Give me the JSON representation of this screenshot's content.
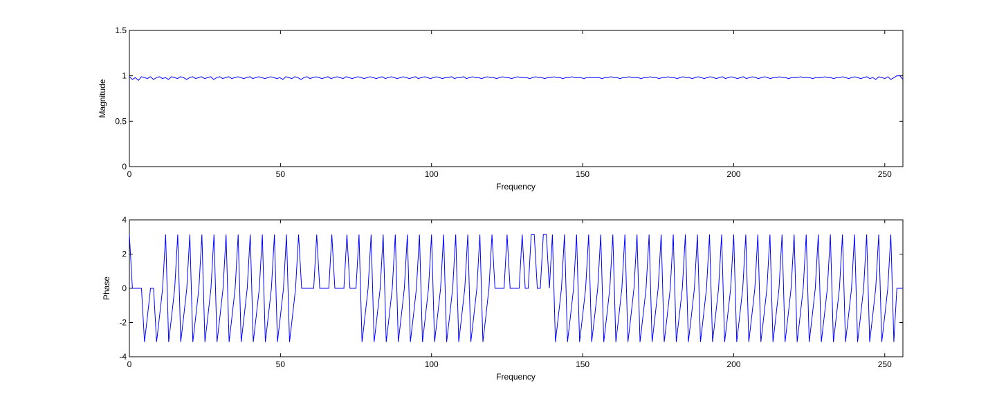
{
  "chart_data": [
    {
      "type": "line",
      "xlabel": "Frequency",
      "ylabel": "Magnitude",
      "xlim": [
        0,
        256
      ],
      "ylim": [
        0,
        1.5
      ],
      "xticks": [
        "0",
        "50",
        "100",
        "150",
        "200",
        "250"
      ],
      "yticks": [
        "0",
        "0.5",
        "1",
        "1.5"
      ],
      "grid": false,
      "line_color": "#0000ff",
      "series": [
        {
          "values_estimated": [
            0.99,
            0.96,
            0.98,
            0.95,
            0.99,
            0.98,
            0.97,
            0.99,
            0.96,
            0.98,
            0.99,
            0.97,
            0.98,
            0.96,
            0.99,
            0.98,
            0.97,
            0.99,
            0.98,
            0.96,
            0.98,
            0.99,
            0.97,
            0.98,
            0.99,
            0.97,
            0.98,
            0.99,
            0.96,
            0.98,
            0.99,
            0.97,
            0.98,
            0.99,
            0.97,
            0.98,
            0.99,
            0.98,
            0.97,
            0.98,
            0.99,
            0.97,
            0.98,
            0.99,
            0.98,
            0.97,
            0.98,
            0.99,
            0.98,
            0.97,
            0.98,
            0.96,
            0.99,
            0.98,
            0.97,
            0.99,
            0.98,
            0.96,
            0.98,
            0.99,
            0.97,
            0.98,
            0.99,
            0.98,
            0.97,
            0.98,
            0.99,
            0.97,
            0.98,
            0.99,
            0.98,
            0.97,
            0.99,
            0.98,
            0.97,
            0.98,
            0.99,
            0.98,
            0.97,
            0.98,
            0.99,
            0.98,
            0.97,
            0.98,
            0.99,
            0.97,
            0.98,
            0.99,
            0.98,
            0.97,
            0.98,
            0.99,
            0.98,
            0.97,
            0.98,
            0.99,
            0.97,
            0.98,
            0.99,
            0.98,
            0.97,
            0.98,
            0.99,
            0.98,
            0.97,
            0.98,
            0.98,
            0.99,
            0.97,
            0.98,
            0.98,
            0.99,
            0.97,
            0.98,
            0.99,
            0.98,
            0.98,
            0.97,
            0.98,
            0.99,
            0.98,
            0.98,
            0.97,
            0.98,
            0.99,
            0.98,
            0.98,
            0.97,
            0.98,
            0.99,
            0.98,
            0.98,
            0.98,
            0.97,
            0.98,
            0.99,
            0.98,
            0.98,
            0.97,
            0.98,
            0.98,
            0.99,
            0.98,
            0.98,
            0.97,
            0.98,
            0.98,
            0.99,
            0.98,
            0.98,
            0.98,
            0.97,
            0.98,
            0.98,
            0.98,
            0.98,
            0.98,
            0.97,
            0.98,
            0.98,
            0.99,
            0.98,
            0.98,
            0.97,
            0.98,
            0.98,
            0.99,
            0.98,
            0.98,
            0.98,
            0.97,
            0.98,
            0.98,
            0.99,
            0.98,
            0.98,
            0.97,
            0.98,
            0.98,
            0.99,
            0.98,
            0.98,
            0.97,
            0.98,
            0.99,
            0.98,
            0.98,
            0.97,
            0.98,
            0.99,
            0.98,
            0.97,
            0.98,
            0.99,
            0.98,
            0.97,
            0.98,
            0.99,
            0.97,
            0.98,
            0.99,
            0.98,
            0.97,
            0.98,
            0.99,
            0.97,
            0.98,
            0.99,
            0.98,
            0.97,
            0.98,
            0.99,
            0.98,
            0.97,
            0.98,
            0.98,
            0.99,
            0.98,
            0.98,
            0.97,
            0.98,
            0.98,
            0.98,
            0.99,
            0.98,
            0.98,
            0.98,
            0.97,
            0.98,
            0.98,
            0.98,
            0.99,
            0.98,
            0.98,
            0.97,
            0.98,
            0.98,
            0.99,
            0.98,
            0.97,
            0.98,
            0.99,
            0.98,
            0.97,
            0.98,
            0.99,
            0.97,
            0.98,
            0.96,
            0.99,
            0.98,
            0.97,
            0.99,
            0.96,
            0.98,
            1.0,
            1.0,
            0.96
          ]
        }
      ]
    },
    {
      "type": "line",
      "xlabel": "Frequency",
      "ylabel": "Phase",
      "xlim": [
        0,
        256
      ],
      "ylim": [
        -4,
        4
      ],
      "xticks": [
        "0",
        "50",
        "100",
        "150",
        "200",
        "250"
      ],
      "yticks": [
        "-4",
        "-2",
        "0",
        "2",
        "4"
      ],
      "grid": false,
      "line_color": "#0000ff",
      "series": [
        {
          "description_points_x": [
            0,
            1,
            2,
            3,
            4,
            5,
            6,
            7,
            8,
            9,
            10,
            11,
            12,
            13,
            14,
            15,
            16,
            17,
            18,
            19,
            20,
            21,
            22,
            23,
            24,
            25,
            26,
            27,
            28,
            29,
            30,
            31,
            32,
            33,
            34,
            35,
            36,
            37,
            38,
            39,
            40,
            41,
            42,
            43,
            44,
            45,
            46,
            47,
            48,
            49,
            50,
            51,
            52,
            53,
            54,
            55,
            56,
            57,
            58,
            59,
            60,
            61,
            62,
            63,
            64,
            65,
            66,
            67,
            68,
            69,
            70,
            71,
            72,
            73,
            74,
            75,
            76,
            77,
            78,
            79,
            80,
            81,
            82,
            83,
            84,
            85,
            86,
            87,
            88,
            89,
            90,
            91,
            92,
            93,
            94,
            95,
            96,
            97,
            98,
            99,
            100,
            101,
            102,
            103,
            104,
            105,
            106,
            107,
            108,
            109,
            110,
            111,
            112,
            113,
            114,
            115,
            116,
            117,
            118,
            119,
            120,
            121,
            122,
            123,
            124,
            125,
            126,
            127,
            128,
            129,
            130,
            131,
            132,
            133,
            134,
            135,
            136,
            137,
            138,
            139,
            140,
            141,
            142,
            143,
            144,
            145,
            146,
            147,
            148,
            149,
            150,
            151,
            152,
            153,
            154,
            155,
            156,
            157,
            158,
            159,
            160,
            161,
            162,
            163,
            164,
            165,
            166,
            167,
            168,
            169,
            170,
            171,
            172,
            173,
            174,
            175,
            176,
            177,
            178,
            179,
            180,
            181,
            182,
            183,
            184,
            185,
            186,
            187,
            188,
            189,
            190,
            191,
            192,
            193,
            194,
            195,
            196,
            197,
            198,
            199,
            200,
            201,
            202,
            203,
            204,
            205,
            206,
            207,
            208,
            209,
            210,
            211,
            212,
            213,
            214,
            215,
            216,
            217,
            218,
            219,
            220,
            221,
            222,
            223,
            224,
            225,
            226,
            227,
            228,
            229,
            230,
            231,
            232,
            233,
            234,
            235,
            236,
            237,
            238,
            239,
            240,
            241,
            242,
            243,
            244,
            245,
            246,
            247,
            248,
            249,
            250,
            251,
            252,
            253,
            254,
            255,
            256
          ],
          "values_estimated": [
            3.14,
            0,
            0,
            0,
            0,
            -3.14,
            -1.6,
            0,
            0,
            -3.14,
            -1.6,
            0,
            3.14,
            -3.14,
            -1.6,
            0,
            3.14,
            -3.14,
            -1.6,
            0,
            3.14,
            -3.14,
            -1.6,
            0,
            3.14,
            -3.14,
            -1.6,
            0,
            3.14,
            -3.14,
            -1.6,
            0,
            3.14,
            -3.14,
            -1.6,
            0,
            3.14,
            -3.14,
            -1.6,
            0,
            3.14,
            -3.14,
            -1.6,
            0,
            3.14,
            -3.14,
            -1.6,
            0,
            3.14,
            -3.14,
            -1.6,
            0,
            3.14,
            -3.14,
            -1.6,
            0,
            3.14,
            0,
            0,
            0,
            0,
            0,
            3.14,
            0,
            0,
            0,
            0,
            3.14,
            0,
            0,
            0,
            0,
            3.14,
            0,
            0,
            0,
            3.14,
            -3.14,
            -1.6,
            0,
            3.14,
            -3.14,
            -1.6,
            0,
            3.14,
            -3.14,
            -1.6,
            0,
            3.14,
            -3.14,
            -1.6,
            0,
            3.14,
            -3.14,
            -1.6,
            0,
            3.14,
            -3.14,
            -1.6,
            0,
            3.14,
            -3.14,
            -1.6,
            0,
            3.14,
            -3.14,
            -1.6,
            0,
            3.14,
            -3.14,
            -1.6,
            0,
            3.14,
            -3.14,
            -1.6,
            0,
            3.14,
            -3.14,
            -1.6,
            0,
            3.14,
            0,
            0,
            0,
            0,
            3.14,
            0,
            0,
            0,
            0,
            3.14,
            0,
            0,
            3.14,
            3.14,
            0,
            0,
            3.14,
            3.14,
            0,
            3.14,
            -3.14,
            -1.6,
            0,
            3.14,
            -3.14,
            -1.6,
            0,
            3.14,
            -3.14,
            -1.6,
            0,
            3.14,
            -3.14,
            -1.6,
            0,
            3.14,
            -3.14,
            -1.6,
            0,
            3.14,
            -3.14,
            -1.6,
            0,
            3.14,
            -3.14,
            -1.6,
            0,
            3.14,
            -3.14,
            -1.6,
            0,
            3.14,
            -3.14,
            -1.6,
            0,
            3.14,
            -3.14,
            -1.6,
            0,
            3.14,
            -3.14,
            -1.6,
            0,
            3.14,
            -3.14,
            -1.6,
            0,
            3.14,
            -3.14,
            -1.6,
            0,
            3.14,
            -3.14,
            -1.6,
            0,
            3.14,
            -3.14,
            -1.6,
            0,
            3.14,
            -3.14,
            -1.6,
            0,
            3.14,
            -3.14,
            -1.6,
            0,
            3.14,
            -3.14,
            -1.6,
            0,
            3.14,
            -3.14,
            -1.6,
            0,
            3.14,
            -3.14,
            -1.6,
            0,
            3.14,
            -3.14,
            -1.6,
            0,
            3.14,
            -3.14,
            -1.6,
            0,
            3.14,
            -3.14,
            -1.6,
            0,
            3.14,
            -3.14,
            -1.6,
            0,
            3.14,
            -3.14,
            -1.6,
            0,
            3.14,
            -3.14,
            -1.6,
            0,
            3.14,
            -3.14,
            -1.6,
            0,
            3.14,
            -3.14,
            -1.6,
            0,
            3.14,
            -3.14,
            0,
            0,
            0
          ]
        }
      ]
    }
  ]
}
